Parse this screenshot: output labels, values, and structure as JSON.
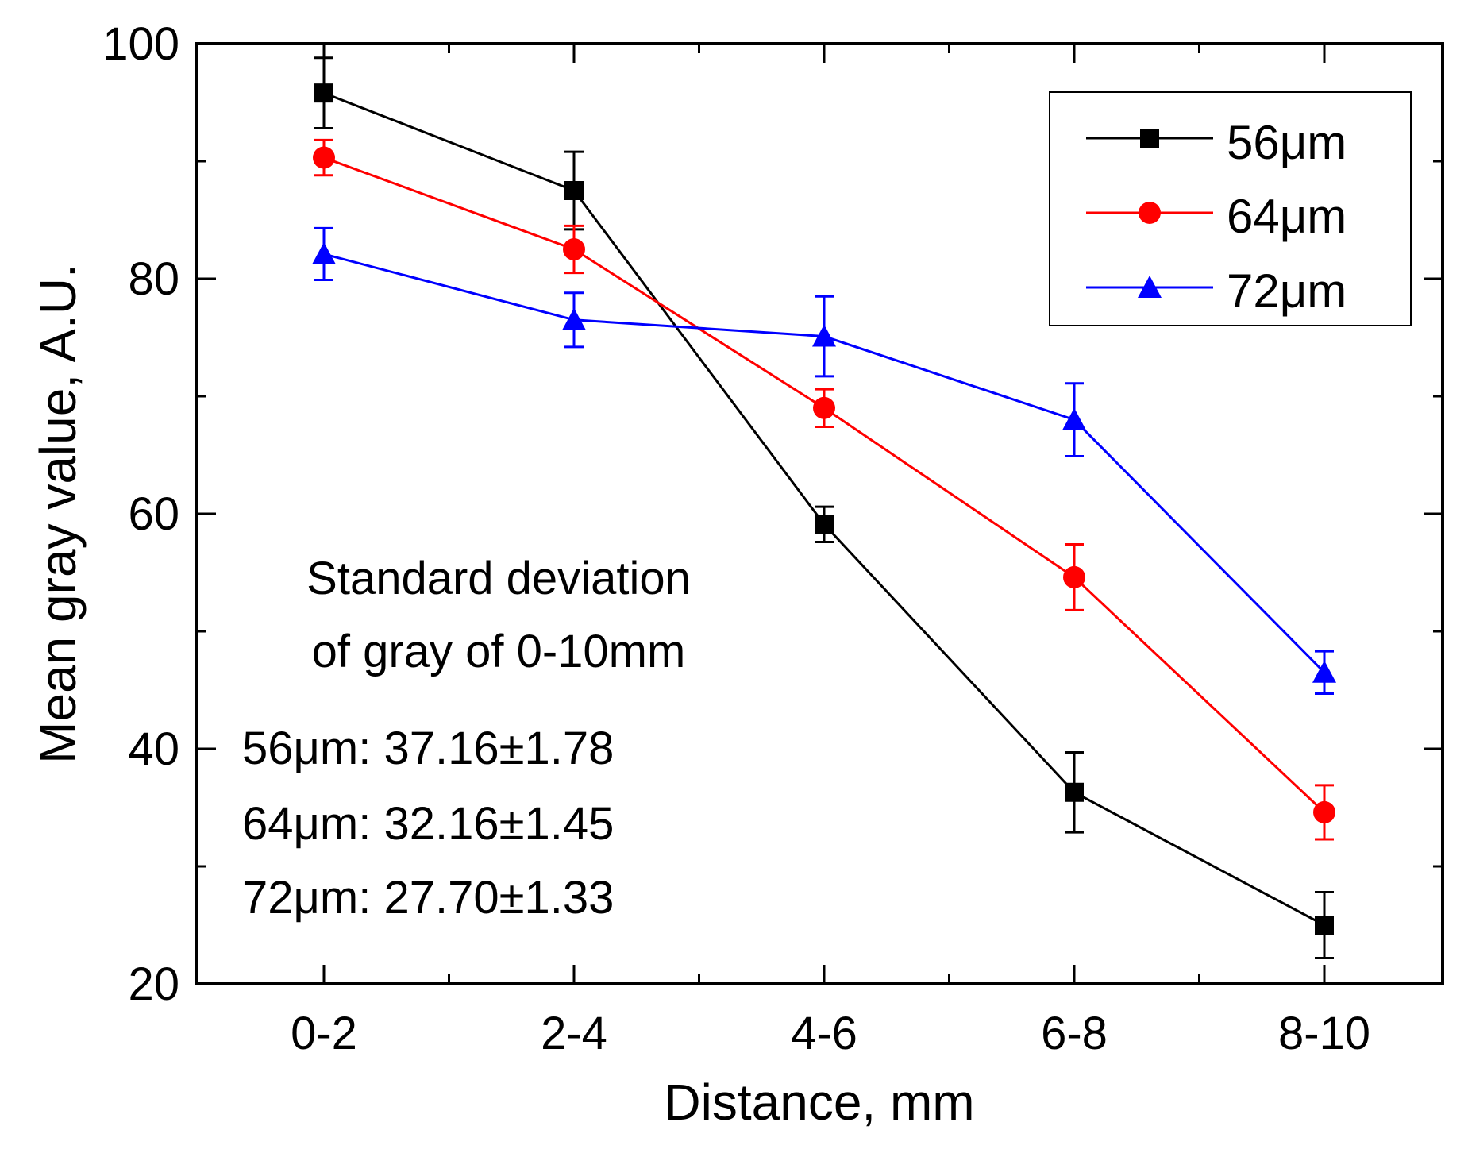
{
  "chart_data": {
    "type": "line",
    "title": "",
    "xlabel": "Distance, mm",
    "ylabel": "Mean gray value, A.U.",
    "categories": [
      "0-2",
      "2-4",
      "4-6",
      "6-8",
      "8-10"
    ],
    "ylim": [
      20,
      100
    ],
    "yticks": [
      20,
      40,
      60,
      80,
      100
    ],
    "grid": false,
    "legend_position": "top-right",
    "series": [
      {
        "name": "56μm",
        "color": "#000000",
        "marker": "square",
        "values": [
          95.8,
          87.5,
          59.1,
          36.3,
          25.0
        ],
        "errors": [
          3.0,
          3.3,
          1.5,
          3.4,
          2.8
        ]
      },
      {
        "name": "64μm",
        "color": "#ff0000",
        "marker": "circle",
        "values": [
          90.3,
          82.5,
          69.0,
          54.6,
          34.6
        ],
        "errors": [
          1.5,
          2.0,
          1.6,
          2.8,
          2.3
        ]
      },
      {
        "name": "72μm",
        "color": "#0000ff",
        "marker": "triangle",
        "values": [
          82.1,
          76.5,
          75.1,
          68.0,
          46.5
        ],
        "errors": [
          2.2,
          2.3,
          3.4,
          3.1,
          1.8
        ]
      }
    ],
    "annotation": {
      "lines": [
        "Standard deviation",
        "of gray of 0-10mm"
      ],
      "stats": [
        "56μm: 37.16±1.78",
        "64μm: 32.16±1.45",
        "72μm: 27.70±1.33"
      ]
    }
  }
}
